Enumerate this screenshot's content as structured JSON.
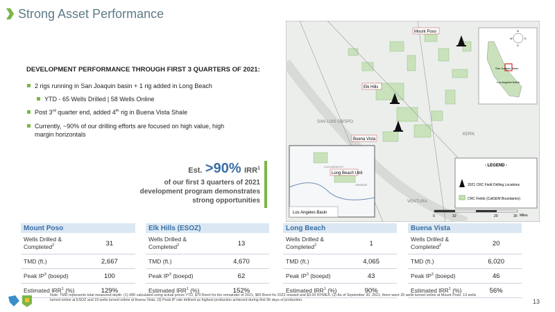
{
  "header": {
    "title": "Strong Asset Performance"
  },
  "development": {
    "heading": "DEVELOPMENT PERFORMANCE THROUGH FIRST 3 QUARTERS OF 2021:",
    "bullets": [
      [
        "2 rigs running in San Joaquin basin + 1 rig added in Long Beach"
      ],
      [
        "YTD - 65 Wells Drilled | 58 Wells Online"
      ],
      [
        "Post 3",
        "rd",
        " quarter end, added 4",
        "th",
        " rig in Buena Vista Shale"
      ],
      [
        "Currently, ~90% of our drilling efforts are focused on high value, high margin horizontals"
      ]
    ]
  },
  "callout": {
    "prefix": "Est.",
    "figure": ">90%",
    "metric": [
      "IRR",
      "1"
    ],
    "text": "of our first 3 quarters of 2021 development program demonstrates strong opportunities"
  },
  "map": {
    "fields": [
      "Mount Poso",
      "Elk Hills",
      "Buena Vista",
      "Long Beach Unit"
    ],
    "counties": [
      "SAN LUIS OBISPO",
      "KERN",
      "VENTURA",
      "LOS ANGELES",
      "ORANGE"
    ],
    "inset_label": "Los Angeles Basin",
    "state_labels": [
      "San Joaquin Basin",
      "Los Angeles Basin"
    ],
    "compass": [
      "N",
      "S",
      "E",
      "W"
    ],
    "legend": {
      "title": "- LEGEND -",
      "items": [
        "2021 CRC Field Drilling Locations",
        "CRC Fields (CalGEM Boundaries)"
      ]
    },
    "scale": [
      "0",
      "10",
      "20",
      "30",
      "Miles"
    ]
  },
  "tables": [
    {
      "title": "Mount Poso",
      "rows": [
        {
          "label": [
            "Wells Drilled & Completed",
            "2"
          ],
          "value": "31"
        },
        {
          "label": [
            "TMD (ft.)"
          ],
          "value": "2,667"
        },
        {
          "label": [
            "Peak IP",
            "3",
            " (boepd)"
          ],
          "value": "100"
        },
        {
          "label": [
            "Estimated IRR",
            "1",
            " (%)"
          ],
          "value": "129%"
        }
      ]
    },
    {
      "title": "Elk Hills (ESOZ)",
      "rows": [
        {
          "label": [
            "Wells Drilled & Completed",
            "2"
          ],
          "value": "13"
        },
        {
          "label": [
            "TMD (ft.)"
          ],
          "value": "4,670"
        },
        {
          "label": [
            "Peak IP",
            "3",
            " (boepd)"
          ],
          "value": "62"
        },
        {
          "label": [
            "Estimated IRR",
            "1",
            " (%)"
          ],
          "value": "152%"
        }
      ]
    },
    {
      "title": "Long Beach",
      "rows": [
        {
          "label": [
            "Wells Drilled & Completed",
            "2"
          ],
          "value": "1"
        },
        {
          "label": [
            "TMD (ft.)"
          ],
          "value": "4,065"
        },
        {
          "label": [
            "Peak IP",
            "3",
            " (boepd)"
          ],
          "value": "43"
        },
        {
          "label": [
            "Estimated IRR",
            "1",
            " (%)"
          ],
          "value": "90%"
        }
      ]
    },
    {
      "title": "Buena Vista",
      "rows": [
        {
          "label": [
            "Wells Drilled & Completed",
            "2"
          ],
          "value": "20"
        },
        {
          "label": [
            "TMD (ft.)"
          ],
          "value": "6,020"
        },
        {
          "label": [
            "Peak IP",
            "3",
            " (boepd)"
          ],
          "value": "46"
        },
        {
          "label": [
            "Estimated IRR",
            "1",
            " (%)"
          ],
          "value": "56%"
        }
      ]
    }
  ],
  "footnote": "Note: TMD represents total measured depth. (1) IRR calculated using actual prices YTD, $70 Brent for the remainder of 2021, $65 Brent for 2022 onward and $3.00 NYMEX. (2) As of September 30, 2021, there were 26 wells turned online at Mount Poso, 13 wells turned online at ESOZ and 19 wells turned online at Buena Vista. (3) Peak IP rate defined as highest production achieved during first 90 days of production.",
  "page_number": "13"
}
